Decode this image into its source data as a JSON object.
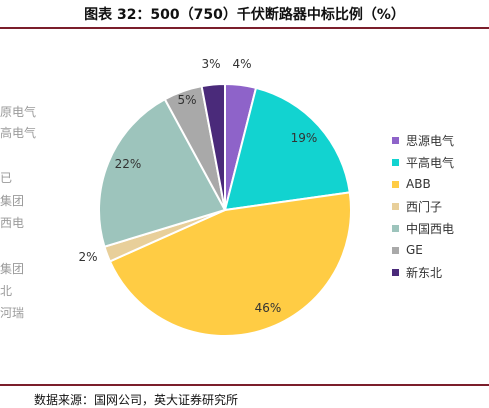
{
  "title": "图表 32：500（750）千伏断路器中标比例（%）",
  "source": "数据来源：国网公司，英大证券研究所",
  "clipped_left_text": [
    "原电气",
    "高电气",
    "已",
    "集团",
    "西电",
    "集团",
    "北",
    "河瑞"
  ],
  "chart_data": {
    "type": "pie",
    "title": "",
    "categories": [
      "思源电气",
      "平高电气",
      "ABB",
      "西门子",
      "中国西电",
      "GE",
      "新东北"
    ],
    "values": [
      4,
      19,
      46,
      2,
      22,
      5,
      3
    ],
    "value_labels": [
      "4%",
      "19%",
      "46%",
      "2%",
      "22%",
      "5%",
      "3%"
    ],
    "colors": [
      "#8e63c9",
      "#12d3d0",
      "#ffcc44",
      "#e8cf9a",
      "#9dc4bc",
      "#a9a9a9",
      "#4a2a7a"
    ],
    "start_angle_deg": 0,
    "direction": "clockwise",
    "legend_position": "right"
  }
}
